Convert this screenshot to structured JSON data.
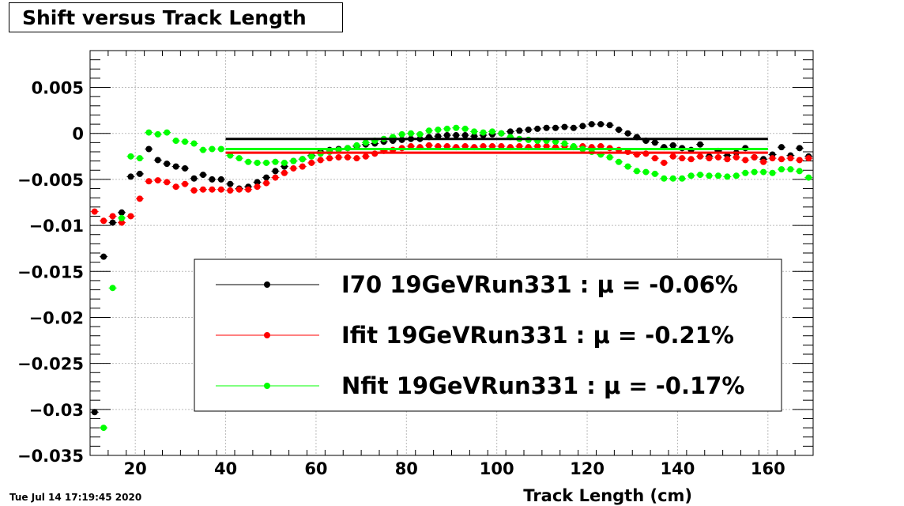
{
  "title": "Shift versus Track Length",
  "date_stamp": "Tue Jul 14 17:19:45 2020",
  "colors": {
    "I70": "#000000",
    "Ifit": "#ff0000",
    "Nfit": "#00ff00",
    "grid": "#bbbbbb"
  },
  "chart_data": {
    "type": "scatter",
    "title": "Shift versus Track Length",
    "xlabel": "Track Length (cm)",
    "ylabel": "",
    "xlim": [
      10,
      170
    ],
    "ylim": [
      -0.035,
      0.009
    ],
    "grid": true,
    "legend_position": "bottom-center",
    "x_ticks": [
      20,
      40,
      60,
      80,
      100,
      120,
      140,
      160
    ],
    "y_ticks": [
      0.005,
      0,
      -0.005,
      -0.01,
      -0.015,
      -0.02,
      -0.025,
      -0.03,
      -0.035
    ],
    "x_tick_labels": [
      "20",
      "40",
      "60",
      "80",
      "100",
      "120",
      "140",
      "160"
    ],
    "y_tick_labels": [
      "0.005",
      "0",
      "−0.005",
      "−0.01",
      "−0.015",
      "−0.02",
      "−0.025",
      "−0.03",
      "−0.035"
    ],
    "series": [
      {
        "name": "I70",
        "legend": "I70  19GeVRun331 : μ = -0.06%",
        "color": "#000000",
        "mean_line": {
          "x": [
            40,
            160
          ],
          "y": -0.0006
        },
        "x": [
          11,
          13,
          15,
          17,
          19,
          21,
          23,
          25,
          27,
          29,
          31,
          33,
          35,
          37,
          39,
          41,
          43,
          45,
          47,
          49,
          51,
          53,
          55,
          57,
          59,
          61,
          63,
          65,
          67,
          69,
          71,
          73,
          75,
          77,
          79,
          81,
          83,
          85,
          87,
          89,
          91,
          93,
          95,
          97,
          99,
          101,
          103,
          105,
          107,
          109,
          111,
          113,
          115,
          117,
          119,
          121,
          123,
          125,
          127,
          129,
          131,
          133,
          135,
          137,
          139,
          141,
          143,
          145,
          147,
          149,
          151,
          153,
          155,
          157,
          159,
          161,
          163,
          165,
          167,
          169
        ],
        "y": [
          -0.0303,
          -0.0134,
          -0.0097,
          -0.0086,
          -0.0047,
          -0.0044,
          -0.0017,
          -0.0029,
          -0.0033,
          -0.0036,
          -0.0038,
          -0.0049,
          -0.0045,
          -0.005,
          -0.005,
          -0.0055,
          -0.006,
          -0.0058,
          -0.0053,
          -0.0048,
          -0.0041,
          -0.0036,
          -0.003,
          -0.0028,
          -0.0024,
          -0.002,
          -0.0018,
          -0.0017,
          -0.0016,
          -0.0014,
          -0.0012,
          -0.0011,
          -0.0009,
          -0.0008,
          -0.0007,
          -0.0006,
          -0.0006,
          -0.0004,
          -0.0003,
          -0.0002,
          -0.0002,
          -0.0002,
          -0.0003,
          -0.0002,
          -0.0001,
          0.0,
          0.0002,
          0.0003,
          0.0004,
          0.0005,
          0.0006,
          0.0006,
          0.0007,
          0.0006,
          0.0008,
          0.001,
          0.001,
          0.0009,
          0.0004,
          0.0,
          -0.0004,
          -0.0008,
          -0.001,
          -0.0015,
          -0.0013,
          -0.0016,
          -0.0018,
          -0.0012,
          -0.0025,
          -0.0019,
          -0.0024,
          -0.0021,
          -0.0016,
          -0.0026,
          -0.0028,
          -0.0023,
          -0.0015,
          -0.0024,
          -0.0016,
          -0.0025
        ]
      },
      {
        "name": "Ifit",
        "legend": "Ifit 19GeVRun331 : μ = -0.21%",
        "color": "#ff0000",
        "mean_line": {
          "x": [
            40,
            160
          ],
          "y": -0.0021
        },
        "x": [
          11,
          13,
          15,
          17,
          19,
          21,
          23,
          25,
          27,
          29,
          31,
          33,
          35,
          37,
          39,
          41,
          43,
          45,
          47,
          49,
          51,
          53,
          55,
          57,
          59,
          61,
          63,
          65,
          67,
          69,
          71,
          73,
          75,
          77,
          79,
          81,
          83,
          85,
          87,
          89,
          91,
          93,
          95,
          97,
          99,
          101,
          103,
          105,
          107,
          109,
          111,
          113,
          115,
          117,
          119,
          121,
          123,
          125,
          127,
          129,
          131,
          133,
          135,
          137,
          139,
          141,
          143,
          145,
          147,
          149,
          151,
          153,
          155,
          157,
          159,
          161,
          163,
          165,
          167,
          169
        ],
        "y": [
          -0.0085,
          -0.0095,
          -0.009,
          -0.0097,
          -0.009,
          -0.0071,
          -0.0052,
          -0.0051,
          -0.0053,
          -0.0058,
          -0.0055,
          -0.0062,
          -0.0061,
          -0.0061,
          -0.0061,
          -0.0062,
          -0.0061,
          -0.0061,
          -0.0058,
          -0.0054,
          -0.0048,
          -0.0043,
          -0.0038,
          -0.0036,
          -0.0032,
          -0.0029,
          -0.0027,
          -0.0026,
          -0.0026,
          -0.0027,
          -0.0025,
          -0.0022,
          -0.0019,
          -0.0018,
          -0.0016,
          -0.0014,
          -0.0015,
          -0.0013,
          -0.0014,
          -0.0014,
          -0.0015,
          -0.0014,
          -0.0015,
          -0.0014,
          -0.0014,
          -0.0014,
          -0.0015,
          -0.0014,
          -0.0015,
          -0.0014,
          -0.0014,
          -0.0015,
          -0.0014,
          -0.0015,
          -0.0014,
          -0.0015,
          -0.0014,
          -0.0016,
          -0.0018,
          -0.002,
          -0.0023,
          -0.0022,
          -0.0027,
          -0.0032,
          -0.0025,
          -0.0027,
          -0.0028,
          -0.0025,
          -0.0027,
          -0.0026,
          -0.0028,
          -0.0026,
          -0.0029,
          -0.0026,
          -0.0031,
          -0.0027,
          -0.0028,
          -0.0027,
          -0.0029,
          -0.0027
        ]
      },
      {
        "name": "Nfit",
        "legend": "Nfit 19GeVRun331 : μ = -0.17%",
        "color": "#00ff00",
        "mean_line": {
          "x": [
            40,
            160
          ],
          "y": -0.0017
        },
        "x": [
          13,
          15,
          17,
          19,
          21,
          23,
          25,
          27,
          29,
          31,
          33,
          35,
          37,
          39,
          41,
          43,
          45,
          47,
          49,
          51,
          53,
          55,
          57,
          59,
          61,
          63,
          65,
          67,
          69,
          71,
          73,
          75,
          77,
          79,
          81,
          83,
          85,
          87,
          89,
          91,
          93,
          95,
          97,
          99,
          101,
          103,
          105,
          107,
          109,
          111,
          113,
          115,
          117,
          119,
          121,
          123,
          125,
          127,
          129,
          131,
          133,
          135,
          137,
          139,
          141,
          143,
          145,
          147,
          149,
          151,
          153,
          155,
          157,
          159,
          161,
          163,
          165,
          167,
          169
        ],
        "y": [
          -0.032,
          -0.0168,
          -0.0092,
          -0.0025,
          -0.0027,
          0.0001,
          -0.0001,
          0.0001,
          -0.0008,
          -0.0009,
          -0.0011,
          -0.0018,
          -0.0017,
          -0.0017,
          -0.0024,
          -0.0027,
          -0.0031,
          -0.0032,
          -0.0032,
          -0.0031,
          -0.0032,
          -0.003,
          -0.0028,
          -0.0025,
          -0.0022,
          -0.002,
          -0.0018,
          -0.0016,
          -0.0013,
          -0.001,
          -0.0008,
          -0.0006,
          -0.0004,
          -0.0001,
          0.0,
          -0.0001,
          0.0003,
          0.0004,
          0.0005,
          0.0006,
          0.0005,
          0.0002,
          0.0001,
          0.0002,
          0.0,
          -0.0004,
          -0.0006,
          -0.0007,
          -0.0008,
          -0.0008,
          -0.0009,
          -0.0011,
          -0.0014,
          -0.0017,
          -0.002,
          -0.0023,
          -0.0026,
          -0.0031,
          -0.0036,
          -0.0041,
          -0.0042,
          -0.0044,
          -0.0049,
          -0.0049,
          -0.0049,
          -0.0046,
          -0.0045,
          -0.0046,
          -0.0046,
          -0.0047,
          -0.0046,
          -0.0043,
          -0.0042,
          -0.0042,
          -0.0043,
          -0.0039,
          -0.0039,
          -0.0041,
          -0.0048
        ]
      }
    ]
  }
}
